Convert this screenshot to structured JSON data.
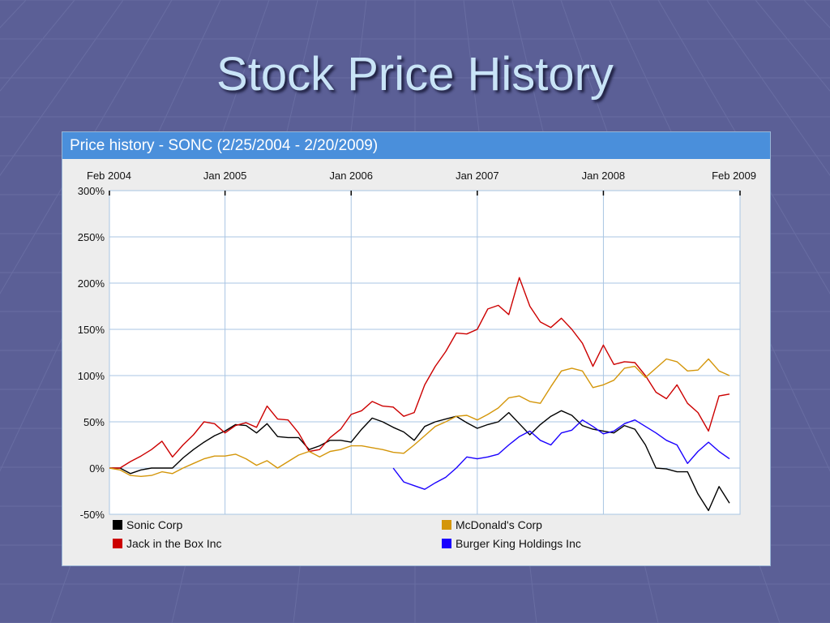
{
  "slide": {
    "title": "Stock Price History"
  },
  "panel": {
    "header": "Price history - SONC (2/25/2004 - 2/20/2009)"
  },
  "chart_data": {
    "type": "line",
    "x_unit": "months since Feb 2004",
    "xlim": [
      0,
      60
    ],
    "ylim": [
      -50,
      300
    ],
    "x_tick_labels": [
      "Feb 2004",
      "Jan 2005",
      "Jan 2006",
      "Jan 2007",
      "Jan 2008",
      "Feb 2009"
    ],
    "x_tick_months": [
      0,
      11,
      23,
      35,
      47,
      60
    ],
    "y_ticks": [
      300,
      250,
      200,
      150,
      100,
      50,
      0,
      -50
    ],
    "y_tick_labels": [
      "300%",
      "250%",
      "200%",
      "150%",
      "100%",
      "50%",
      "0%",
      "-50%"
    ],
    "grid": true,
    "legend_position": "bottom",
    "series": [
      {
        "name": "Sonic Corp",
        "color": "#000000",
        "x": [
          0,
          1,
          2,
          3,
          4,
          5,
          6,
          7,
          8,
          9,
          10,
          11,
          12,
          13,
          14,
          15,
          16,
          17,
          18,
          19,
          20,
          21,
          22,
          23,
          24,
          25,
          26,
          27,
          28,
          29,
          30,
          31,
          32,
          33,
          34,
          35,
          36,
          37,
          38,
          39,
          40,
          41,
          42,
          43,
          44,
          45,
          46,
          47,
          48,
          49,
          50,
          51,
          52,
          53,
          54,
          55,
          56,
          57,
          58,
          59
        ],
        "values": [
          0,
          0,
          -6,
          -2,
          0,
          0,
          0,
          11,
          20,
          28,
          35,
          40,
          47,
          46,
          38,
          48,
          34,
          33,
          33,
          20,
          24,
          30,
          30,
          28,
          42,
          54,
          50,
          44,
          39,
          30,
          45,
          50,
          53,
          56,
          49,
          43,
          47,
          50,
          60,
          48,
          36,
          47,
          56,
          62,
          57,
          46,
          42,
          40,
          38,
          46,
          42,
          25,
          0,
          -1,
          -4,
          -4,
          -28,
          -46,
          -20,
          -38
        ]
      },
      {
        "name": "Jack in the Box Inc",
        "color": "#cc0000",
        "x": [
          0,
          1,
          2,
          3,
          4,
          5,
          6,
          7,
          8,
          9,
          10,
          11,
          12,
          13,
          14,
          15,
          16,
          17,
          18,
          19,
          20,
          21,
          22,
          23,
          24,
          25,
          26,
          27,
          28,
          29,
          30,
          31,
          32,
          33,
          34,
          35,
          36,
          37,
          38,
          39,
          40,
          41,
          42,
          43,
          44,
          45,
          46,
          47,
          48,
          49,
          50,
          51,
          52,
          53,
          54,
          55,
          56,
          57,
          58,
          59
        ],
        "values": [
          0,
          0,
          7,
          13,
          20,
          29,
          12,
          25,
          36,
          50,
          48,
          38,
          46,
          49,
          44,
          67,
          53,
          52,
          38,
          18,
          20,
          33,
          42,
          58,
          62,
          72,
          67,
          66,
          56,
          60,
          90,
          110,
          126,
          146,
          145,
          150,
          172,
          176,
          166,
          206,
          175,
          158,
          152,
          162,
          150,
          135,
          110,
          133,
          112,
          115,
          114,
          100,
          82,
          75,
          90,
          70,
          60,
          40,
          78,
          80
        ]
      },
      {
        "name": "McDonald's Corp",
        "color": "#d4960a",
        "x": [
          0,
          1,
          2,
          3,
          4,
          5,
          6,
          7,
          8,
          9,
          10,
          11,
          12,
          13,
          14,
          15,
          16,
          17,
          18,
          19,
          20,
          21,
          22,
          23,
          24,
          25,
          26,
          27,
          28,
          29,
          30,
          31,
          32,
          33,
          34,
          35,
          36,
          37,
          38,
          39,
          40,
          41,
          42,
          43,
          44,
          45,
          46,
          47,
          48,
          49,
          50,
          51,
          52,
          53,
          54,
          55,
          56,
          57,
          58,
          59
        ],
        "values": [
          0,
          -2,
          -8,
          -9,
          -8,
          -4,
          -6,
          0,
          5,
          10,
          13,
          13,
          15,
          10,
          3,
          8,
          0,
          7,
          14,
          18,
          12,
          18,
          20,
          24,
          24,
          22,
          20,
          17,
          16,
          25,
          35,
          45,
          50,
          56,
          57,
          52,
          58,
          65,
          76,
          78,
          72,
          70,
          88,
          105,
          108,
          105,
          87,
          90,
          95,
          108,
          110,
          98,
          108,
          118,
          115,
          105,
          106,
          118,
          105,
          100
        ]
      },
      {
        "name": "Burger King Holdings Inc",
        "color": "#1a00ff",
        "x": [
          27,
          28,
          29,
          30,
          31,
          32,
          33,
          34,
          35,
          36,
          37,
          38,
          39,
          40,
          41,
          42,
          43,
          44,
          45,
          46,
          47,
          48,
          49,
          50,
          51,
          52,
          53,
          54,
          55,
          56,
          57,
          58,
          59
        ],
        "values": [
          0,
          -15,
          -19,
          -23,
          -16,
          -10,
          0,
          12,
          10,
          12,
          15,
          25,
          34,
          40,
          30,
          25,
          38,
          41,
          52,
          45,
          37,
          40,
          48,
          52,
          45,
          38,
          30,
          25,
          5,
          18,
          28,
          18,
          10
        ]
      }
    ]
  }
}
